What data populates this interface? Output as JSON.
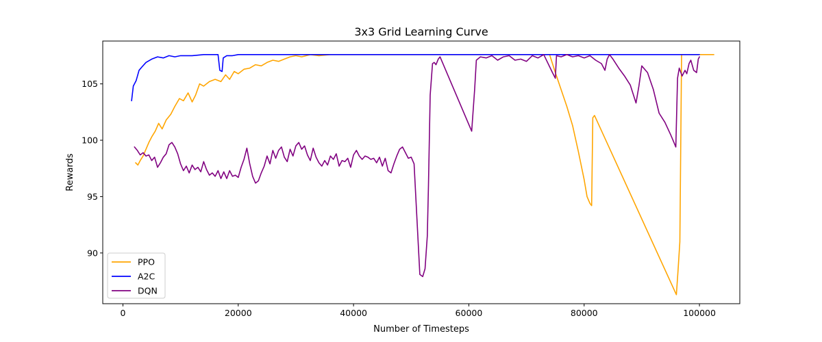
{
  "chart_data": {
    "type": "line",
    "title": "3x3 Grid Learning Curve",
    "xlabel": "Number of Timesteps",
    "ylabel": "Rewards",
    "xlim": [
      -3500,
      107000
    ],
    "ylim": [
      85.5,
      108.8
    ],
    "xticks": [
      0,
      20000,
      40000,
      60000,
      80000,
      100000
    ],
    "yticks": [
      90,
      95,
      100,
      105
    ],
    "xtick_labels": [
      "0",
      "20000",
      "40000",
      "60000",
      "80000",
      "100000"
    ],
    "ytick_labels": [
      "90",
      "95",
      "100",
      "105"
    ],
    "grid": false,
    "legend_position": "lower-left",
    "series": [
      {
        "name": "PPO",
        "color": "#ffa500",
        "points": [
          [
            2200,
            98.0
          ],
          [
            2600,
            97.8
          ],
          [
            3000,
            98.2
          ],
          [
            3500,
            98.6
          ],
          [
            4000,
            99.2
          ],
          [
            4500,
            99.8
          ],
          [
            5000,
            100.3
          ],
          [
            5600,
            100.8
          ],
          [
            6200,
            101.5
          ],
          [
            6800,
            101.0
          ],
          [
            7500,
            101.8
          ],
          [
            8300,
            102.3
          ],
          [
            9000,
            103.0
          ],
          [
            9800,
            103.7
          ],
          [
            10500,
            103.5
          ],
          [
            11300,
            104.2
          ],
          [
            12000,
            103.4
          ],
          [
            12600,
            104.0
          ],
          [
            13300,
            105.0
          ],
          [
            14000,
            104.8
          ],
          [
            15000,
            105.2
          ],
          [
            16000,
            105.4
          ],
          [
            17000,
            105.2
          ],
          [
            17800,
            105.8
          ],
          [
            18500,
            105.4
          ],
          [
            19300,
            106.1
          ],
          [
            20000,
            105.9
          ],
          [
            21000,
            106.3
          ],
          [
            22000,
            106.4
          ],
          [
            23000,
            106.7
          ],
          [
            24000,
            106.6
          ],
          [
            25000,
            106.9
          ],
          [
            26000,
            107.1
          ],
          [
            27000,
            107.0
          ],
          [
            28000,
            107.2
          ],
          [
            29000,
            107.4
          ],
          [
            30000,
            107.5
          ],
          [
            31000,
            107.4
          ],
          [
            32500,
            107.6
          ],
          [
            34000,
            107.5
          ],
          [
            36000,
            107.6
          ],
          [
            45000,
            107.6
          ],
          [
            55000,
            107.6
          ],
          [
            65000,
            107.6
          ],
          [
            73000,
            107.6
          ],
          [
            74000,
            107.6
          ],
          [
            75000,
            106.0
          ],
          [
            76000,
            104.5
          ],
          [
            77000,
            103.0
          ],
          [
            78000,
            101.3
          ],
          [
            79000,
            99.0
          ],
          [
            80000,
            96.5
          ],
          [
            80500,
            95.0
          ],
          [
            81000,
            94.4
          ],
          [
            81300,
            94.2
          ],
          [
            81500,
            102.0
          ],
          [
            81800,
            102.2
          ],
          [
            96000,
            86.3
          ],
          [
            96300,
            88.5
          ],
          [
            96600,
            91.0
          ],
          [
            96900,
            107.6
          ],
          [
            100000,
            107.6
          ],
          [
            102500,
            107.6
          ]
        ]
      },
      {
        "name": "A2C",
        "color": "#0000ff",
        "points": [
          [
            1500,
            103.5
          ],
          [
            1800,
            104.8
          ],
          [
            2300,
            105.3
          ],
          [
            2800,
            106.2
          ],
          [
            3300,
            106.5
          ],
          [
            4000,
            106.9
          ],
          [
            5000,
            107.2
          ],
          [
            6000,
            107.4
          ],
          [
            7000,
            107.3
          ],
          [
            8000,
            107.5
          ],
          [
            9000,
            107.4
          ],
          [
            10000,
            107.5
          ],
          [
            12000,
            107.5
          ],
          [
            14000,
            107.6
          ],
          [
            16500,
            107.6
          ],
          [
            16800,
            106.2
          ],
          [
            17200,
            106.1
          ],
          [
            17400,
            107.3
          ],
          [
            18000,
            107.5
          ],
          [
            19000,
            107.5
          ],
          [
            20000,
            107.6
          ],
          [
            30000,
            107.6
          ],
          [
            50000,
            107.6
          ],
          [
            70000,
            107.6
          ],
          [
            90000,
            107.6
          ],
          [
            100000,
            107.6
          ]
        ]
      },
      {
        "name": "DQN",
        "color": "#800080",
        "points": [
          [
            2000,
            99.4
          ],
          [
            2500,
            99.1
          ],
          [
            3000,
            98.7
          ],
          [
            3500,
            98.9
          ],
          [
            4000,
            98.6
          ],
          [
            4500,
            98.7
          ],
          [
            5000,
            98.2
          ],
          [
            5500,
            98.5
          ],
          [
            6000,
            97.6
          ],
          [
            6500,
            98.0
          ],
          [
            7000,
            98.5
          ],
          [
            7500,
            98.8
          ],
          [
            8000,
            99.6
          ],
          [
            8500,
            99.8
          ],
          [
            9000,
            99.4
          ],
          [
            9500,
            98.8
          ],
          [
            10000,
            97.9
          ],
          [
            10500,
            97.3
          ],
          [
            11000,
            97.7
          ],
          [
            11500,
            97.1
          ],
          [
            12000,
            97.8
          ],
          [
            12500,
            97.4
          ],
          [
            13000,
            97.6
          ],
          [
            13500,
            97.2
          ],
          [
            14000,
            98.1
          ],
          [
            14500,
            97.4
          ],
          [
            15000,
            96.9
          ],
          [
            15500,
            97.1
          ],
          [
            16000,
            96.8
          ],
          [
            16500,
            97.3
          ],
          [
            17000,
            96.6
          ],
          [
            17500,
            97.2
          ],
          [
            18000,
            96.6
          ],
          [
            18500,
            97.3
          ],
          [
            19000,
            96.8
          ],
          [
            19500,
            96.9
          ],
          [
            20000,
            96.7
          ],
          [
            20500,
            97.6
          ],
          [
            21000,
            98.3
          ],
          [
            21500,
            99.3
          ],
          [
            22000,
            97.9
          ],
          [
            22500,
            96.8
          ],
          [
            23000,
            96.2
          ],
          [
            23500,
            96.4
          ],
          [
            24000,
            97.1
          ],
          [
            24500,
            97.7
          ],
          [
            25000,
            98.6
          ],
          [
            25500,
            97.9
          ],
          [
            26000,
            99.1
          ],
          [
            26500,
            98.4
          ],
          [
            27000,
            99.1
          ],
          [
            27500,
            99.4
          ],
          [
            28000,
            98.5
          ],
          [
            28500,
            98.1
          ],
          [
            29000,
            99.2
          ],
          [
            29500,
            98.6
          ],
          [
            30000,
            99.5
          ],
          [
            30500,
            99.8
          ],
          [
            31000,
            99.2
          ],
          [
            31500,
            99.5
          ],
          [
            32000,
            98.7
          ],
          [
            32500,
            98.2
          ],
          [
            33000,
            99.3
          ],
          [
            33500,
            98.5
          ],
          [
            34000,
            98.0
          ],
          [
            34500,
            97.7
          ],
          [
            35000,
            98.2
          ],
          [
            35500,
            97.8
          ],
          [
            36000,
            98.6
          ],
          [
            36500,
            98.3
          ],
          [
            37000,
            98.8
          ],
          [
            37500,
            97.7
          ],
          [
            38000,
            98.2
          ],
          [
            38500,
            98.1
          ],
          [
            39000,
            98.4
          ],
          [
            39500,
            97.6
          ],
          [
            40000,
            98.7
          ],
          [
            40500,
            99.1
          ],
          [
            41000,
            98.6
          ],
          [
            41500,
            98.3
          ],
          [
            42000,
            98.6
          ],
          [
            42500,
            98.5
          ],
          [
            43000,
            98.3
          ],
          [
            43500,
            98.4
          ],
          [
            44000,
            98.0
          ],
          [
            44500,
            98.5
          ],
          [
            45000,
            97.7
          ],
          [
            45500,
            98.4
          ],
          [
            46000,
            97.3
          ],
          [
            46500,
            97.1
          ],
          [
            47000,
            97.9
          ],
          [
            47500,
            98.6
          ],
          [
            48000,
            99.2
          ],
          [
            48500,
            99.4
          ],
          [
            49000,
            98.9
          ],
          [
            49500,
            98.4
          ],
          [
            50000,
            98.5
          ],
          [
            50500,
            97.9
          ],
          [
            51000,
            93.0
          ],
          [
            51500,
            88.1
          ],
          [
            52000,
            87.9
          ],
          [
            52400,
            88.6
          ],
          [
            52800,
            91.5
          ],
          [
            53000,
            96.0
          ],
          [
            53300,
            104.0
          ],
          [
            53700,
            106.8
          ],
          [
            54000,
            106.9
          ],
          [
            54300,
            106.7
          ],
          [
            54700,
            107.2
          ],
          [
            55000,
            107.4
          ],
          [
            60500,
            100.8
          ],
          [
            61000,
            104.5
          ],
          [
            61300,
            107.1
          ],
          [
            62000,
            107.4
          ],
          [
            63000,
            107.3
          ],
          [
            64000,
            107.5
          ],
          [
            65000,
            107.1
          ],
          [
            66000,
            107.4
          ],
          [
            67000,
            107.5
          ],
          [
            68000,
            107.1
          ],
          [
            69000,
            107.2
          ],
          [
            70000,
            107.0
          ],
          [
            71000,
            107.5
          ],
          [
            72000,
            107.3
          ],
          [
            73000,
            107.6
          ],
          [
            74500,
            106.0
          ],
          [
            75000,
            105.5
          ],
          [
            75200,
            107.5
          ],
          [
            76000,
            107.4
          ],
          [
            77000,
            107.6
          ],
          [
            78000,
            107.4
          ],
          [
            79000,
            107.5
          ],
          [
            80000,
            107.3
          ],
          [
            81000,
            107.5
          ],
          [
            82000,
            107.1
          ],
          [
            83000,
            106.8
          ],
          [
            83600,
            106.2
          ],
          [
            84000,
            107.2
          ],
          [
            84400,
            107.6
          ],
          [
            85000,
            107.2
          ],
          [
            86000,
            106.4
          ],
          [
            87000,
            105.7
          ],
          [
            88000,
            104.9
          ],
          [
            89000,
            103.3
          ],
          [
            89500,
            104.8
          ],
          [
            90000,
            106.6
          ],
          [
            91000,
            106.0
          ],
          [
            92000,
            104.5
          ],
          [
            93000,
            102.4
          ],
          [
            94000,
            101.6
          ],
          [
            95000,
            100.5
          ],
          [
            95500,
            99.9
          ],
          [
            95900,
            99.4
          ],
          [
            96200,
            105.5
          ],
          [
            96500,
            106.4
          ],
          [
            97000,
            105.7
          ],
          [
            97500,
            106.2
          ],
          [
            97800,
            105.9
          ],
          [
            98200,
            106.8
          ],
          [
            98500,
            107.1
          ],
          [
            99000,
            106.2
          ],
          [
            99500,
            106.0
          ],
          [
            99800,
            107.2
          ],
          [
            100000,
            107.4
          ]
        ]
      }
    ]
  }
}
